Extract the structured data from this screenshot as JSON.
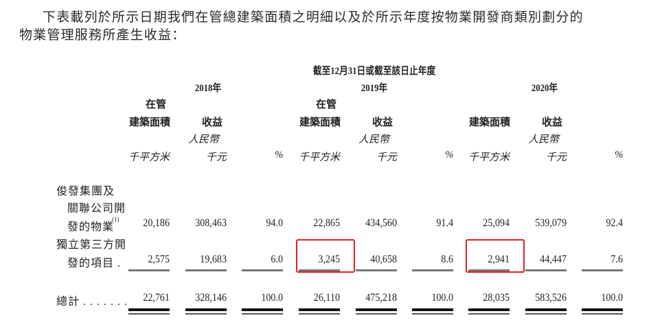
{
  "intro": {
    "line1": "下表載列於所示日期我們在管總建築面積之明細以及於所示年度按物業開發商類別劃分的",
    "line2": "物業管理服務所產生收益："
  },
  "table": {
    "period_header": "截至12月31日或截至該日止年度",
    "years": [
      "2018年",
      "2019年",
      "2020年"
    ],
    "col_headers": {
      "gfa_top": "在管",
      "gfa": "建築面積",
      "revenue": "收益",
      "currency": "人民幣",
      "unit_gfa": "千平方米",
      "unit_rev": "千元",
      "unit_pct": "%"
    },
    "rows": [
      {
        "label_lines": [
          "俊發集團及",
          "關聯公司開",
          "發的物業"
        ],
        "footnote": "(1)",
        "values": [
          "20,186",
          "308,463",
          "94.0",
          "22,865",
          "434,560",
          "91.4",
          "25,094",
          "539,079",
          "92.4"
        ]
      },
      {
        "label_lines": [
          "獨立第三方開",
          "發的項目 ."
        ],
        "footnote": "",
        "values": [
          "2,575",
          "19,683",
          "6.0",
          "3,245",
          "40,658",
          "8.6",
          "2,941",
          "44,447",
          "7.6"
        ]
      }
    ],
    "total": {
      "label": "總計 . . . . . . .",
      "values": [
        "22,761",
        "328,146",
        "100.0",
        "26,110",
        "475,218",
        "100.0",
        "28,035",
        "583,526",
        "100.0"
      ]
    },
    "highlighted_cells": [
      {
        "row": 1,
        "col": 3
      },
      {
        "row": 1,
        "col": 6
      }
    ],
    "highlight_color": "#e02020"
  }
}
